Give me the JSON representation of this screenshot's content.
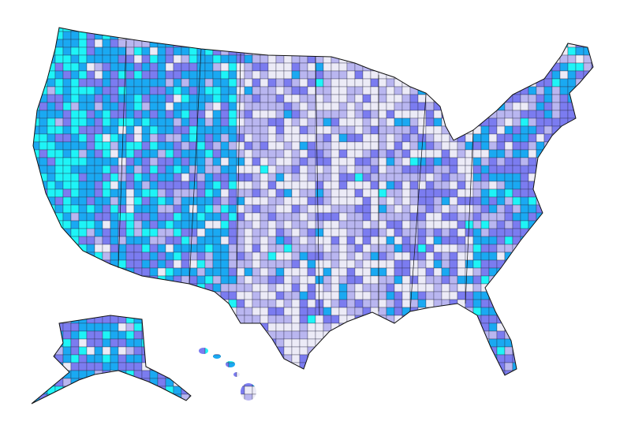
{
  "map": {
    "palette": [
      "#ecebf7",
      "#b9b6f0",
      "#7b7cf0",
      "#1aa9f2",
      "#1ef4f7"
    ]
  }
}
